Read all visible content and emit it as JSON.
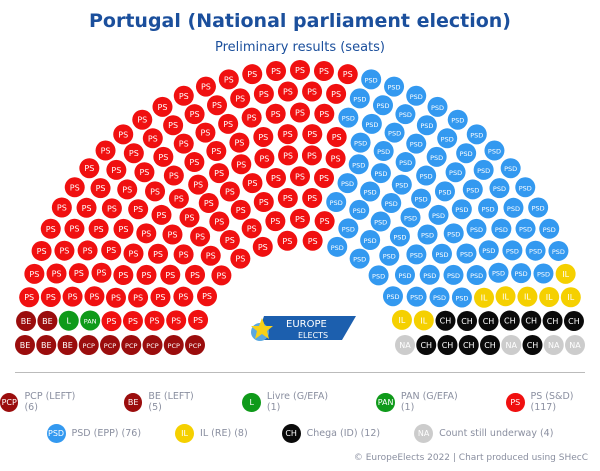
{
  "title": "Portugal (National parliament election)",
  "subtitle": "Preliminary results (seats)",
  "logo": {
    "line1": "EUROPE",
    "line2": "ELECTS"
  },
  "footer": "© EuropeElects 2022 | Chart produced using SHecC",
  "chart_data": {
    "type": "parliament",
    "title": "Portugal (National parliament election)",
    "subtitle": "Preliminary results (seats)",
    "total_seats": 230,
    "rows": 9,
    "parties": [
      {
        "abbr": "PCP",
        "legend": "PCP (LEFT) (6)",
        "seats": 6,
        "color": "#9b0d0d"
      },
      {
        "abbr": "BE",
        "legend": "BE (LEFT) (5)",
        "seats": 5,
        "color": "#9b0d0d"
      },
      {
        "abbr": "L",
        "legend": "Livre (G/EFA) (1)",
        "seats": 1,
        "color": "#0f9a1a"
      },
      {
        "abbr": "PAN",
        "legend": "PAN (G/EFA) (1)",
        "seats": 1,
        "color": "#0f9a1a"
      },
      {
        "abbr": "PS",
        "legend": "PS (S&D) (117)",
        "seats": 117,
        "color": "#f01010"
      },
      {
        "abbr": "PSD",
        "legend": "PSD (EPP) (76)",
        "seats": 76,
        "color": "#3399f0"
      },
      {
        "abbr": "IL",
        "legend": "IL (RE) (8)",
        "seats": 8,
        "color": "#f5d000"
      },
      {
        "abbr": "CH",
        "legend": "Chega (ID) (12)",
        "seats": 12,
        "color": "#0a0a0a"
      },
      {
        "abbr": "NA",
        "legend": "Count still underway (4)",
        "seats": 4,
        "color": "#cccccc"
      }
    ]
  }
}
